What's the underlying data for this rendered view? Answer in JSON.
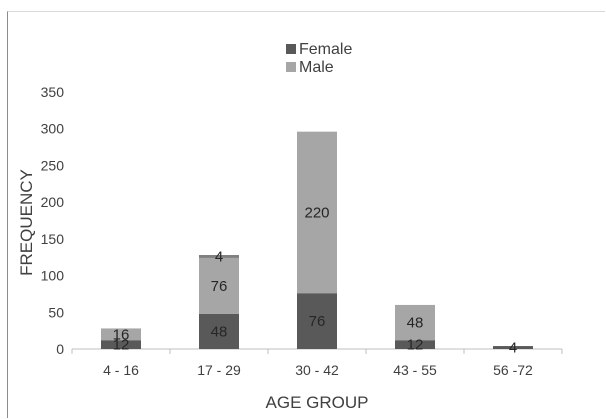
{
  "chart_data": {
    "type": "bar",
    "stacked": true,
    "categories": [
      "4 - 16",
      "17 - 29",
      "30 - 42",
      "43 - 55",
      "56 -72"
    ],
    "series": [
      {
        "name": "Female",
        "values": [
          12,
          48,
          76,
          12,
          4
        ],
        "color": "#595959",
        "labels": [
          "12",
          "48",
          "76",
          "12",
          "4"
        ]
      },
      {
        "name": "Male",
        "values": [
          16,
          76,
          220,
          48,
          0
        ],
        "color": "#a6a6a6",
        "labels": [
          "16",
          "76",
          "220",
          "48",
          ""
        ]
      },
      {
        "name": "",
        "values": [
          0,
          4,
          0,
          0,
          0
        ],
        "color": "#808080",
        "labels": [
          "",
          "4",
          "",
          "",
          ""
        ]
      }
    ],
    "xlabel": "AGE GROUP",
    "ylabel": "FREQUENCY",
    "ylim": [
      0,
      350
    ],
    "yticks": [
      0,
      50,
      100,
      150,
      200,
      250,
      300,
      350
    ],
    "grid": false,
    "legend_position": "top-center"
  }
}
